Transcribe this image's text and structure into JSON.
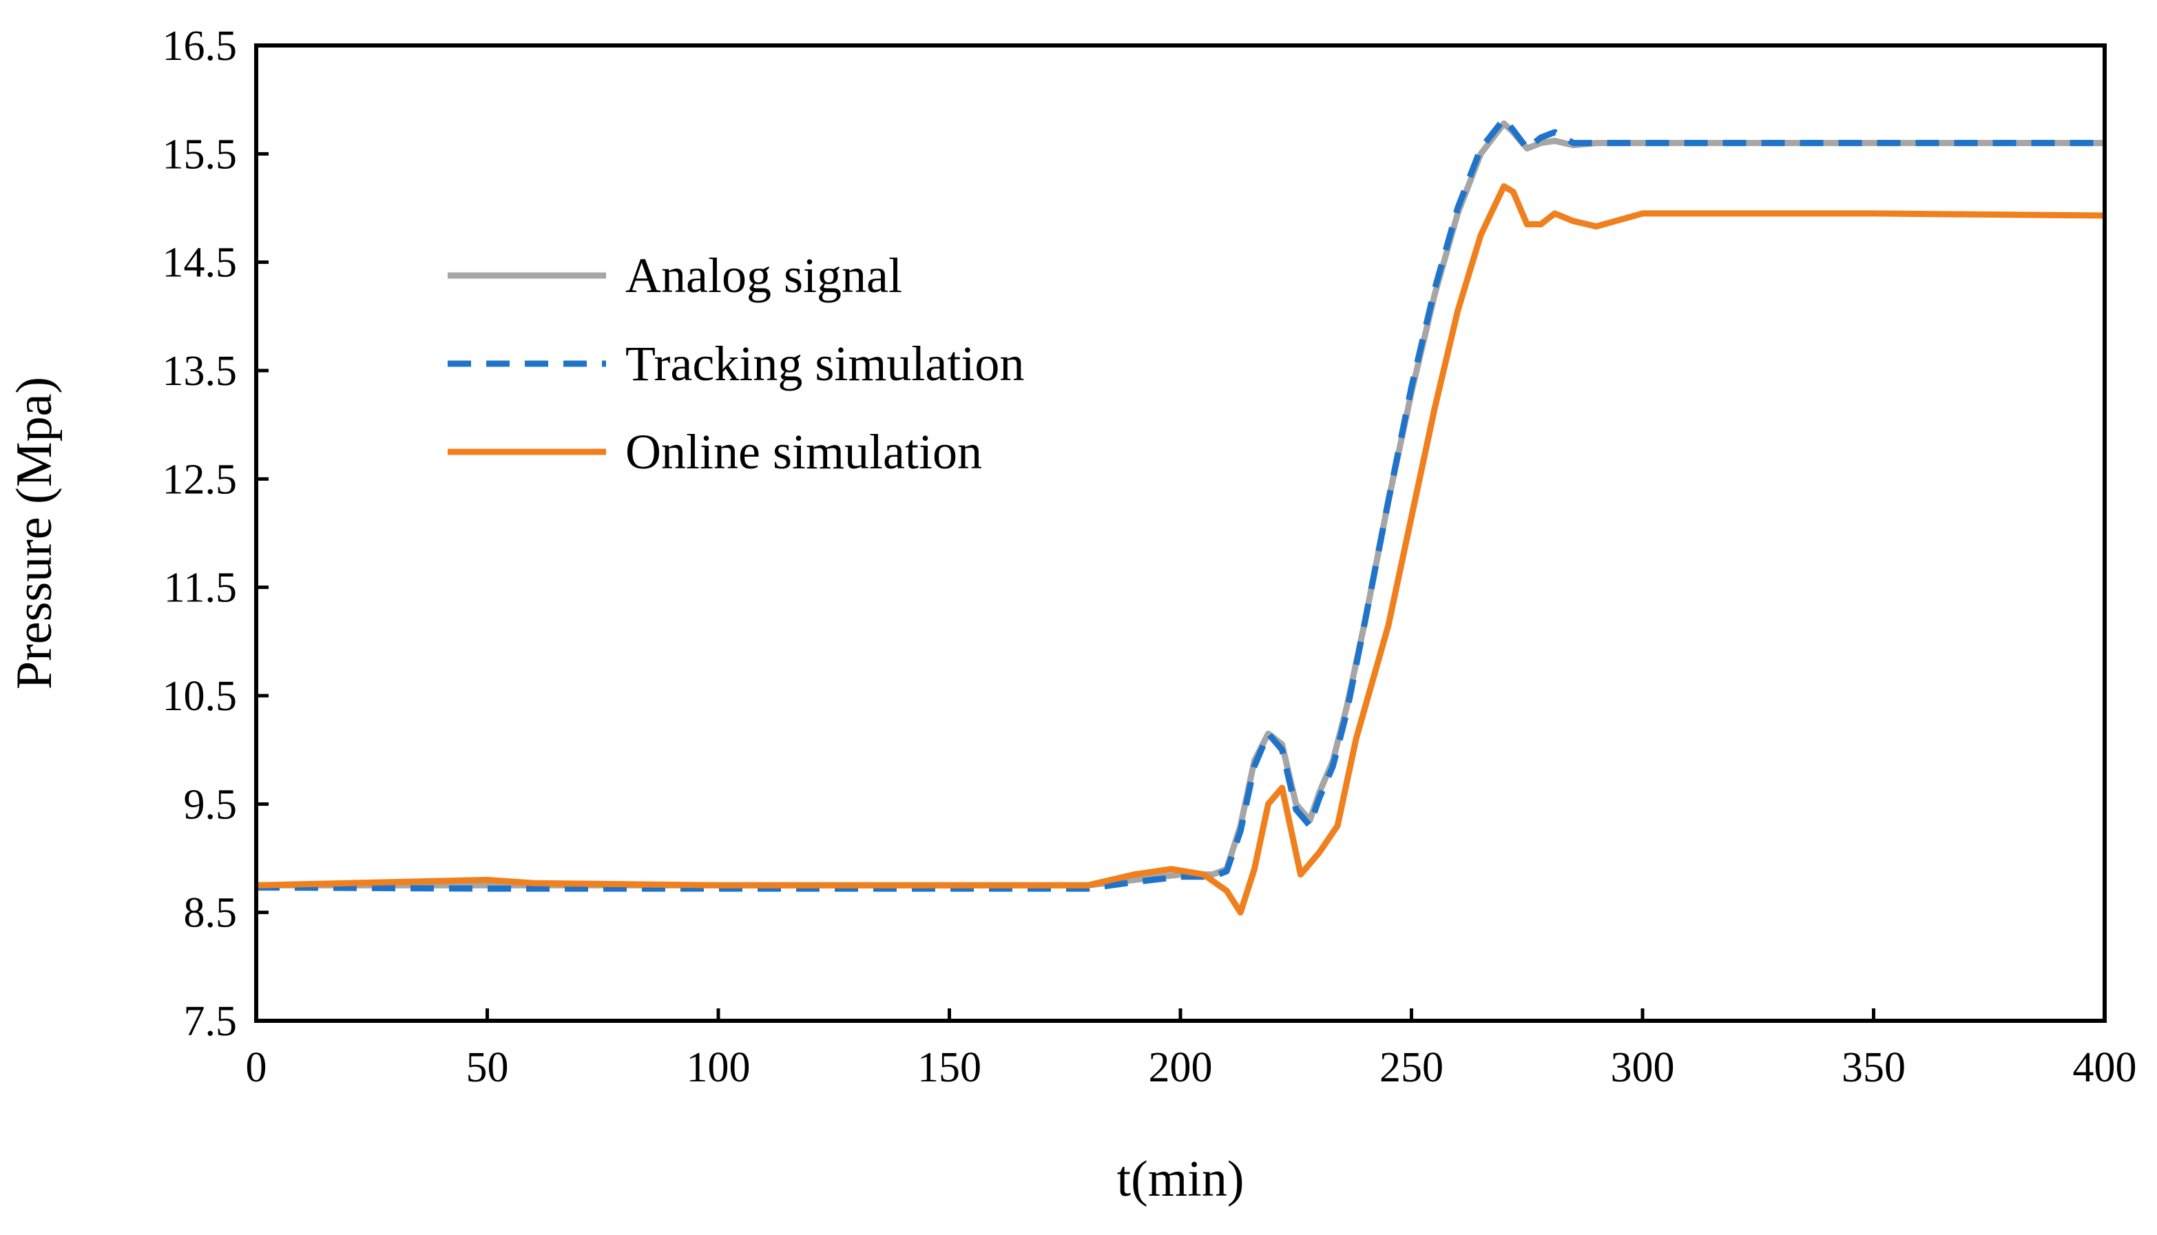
{
  "chart_data": {
    "type": "line",
    "title": "",
    "xlabel": "t(min)",
    "ylabel": "Pressure (Mpa)",
    "xlim": [
      0,
      400
    ],
    "ylim": [
      7.5,
      16.5
    ],
    "xticks": [
      0,
      50,
      100,
      150,
      200,
      250,
      300,
      350,
      400
    ],
    "yticks": [
      7.5,
      8.5,
      9.5,
      10.5,
      11.5,
      12.5,
      13.5,
      14.5,
      15.5,
      16.5
    ],
    "xtick_labels": [
      "0",
      "50",
      "100",
      "150",
      "200",
      "250",
      "300",
      "350",
      "400"
    ],
    "ytick_labels": [
      "7.5",
      "8.5",
      "9.5",
      "10.5",
      "11.5",
      "12.5",
      "13.5",
      "14.5",
      "15.5",
      "16.5"
    ],
    "grid": false,
    "legend_position": "upper-left",
    "series": [
      {
        "name": "Analog signal",
        "color": "#a6a6a6",
        "style": "solid",
        "x": [
          0,
          50,
          100,
          150,
          180,
          190,
          200,
          207,
          210,
          213,
          216,
          219,
          222,
          225,
          228,
          230,
          233,
          236,
          240,
          245,
          250,
          255,
          260,
          265,
          270,
          272,
          275,
          278,
          281,
          285,
          290,
          300,
          350,
          400
        ],
        "y": [
          8.75,
          8.75,
          8.75,
          8.75,
          8.75,
          8.8,
          8.85,
          8.85,
          8.9,
          9.3,
          9.9,
          10.15,
          10.05,
          9.5,
          9.35,
          9.6,
          9.9,
          10.4,
          11.2,
          12.3,
          13.3,
          14.2,
          14.95,
          15.5,
          15.78,
          15.7,
          15.55,
          15.6,
          15.62,
          15.58,
          15.6,
          15.6,
          15.6,
          15.6
        ]
      },
      {
        "name": "Tracking simulation",
        "color": "#1f73c9",
        "style": "dashed",
        "x": [
          0,
          50,
          100,
          150,
          180,
          190,
          200,
          207,
          210,
          213,
          216,
          219,
          222,
          225,
          228,
          230,
          233,
          236,
          240,
          245,
          250,
          255,
          260,
          265,
          270,
          272,
          275,
          278,
          281,
          285,
          290,
          300,
          350,
          400
        ],
        "y": [
          8.73,
          8.72,
          8.72,
          8.72,
          8.72,
          8.78,
          8.83,
          8.83,
          8.88,
          9.25,
          9.85,
          10.15,
          10.0,
          9.45,
          9.3,
          9.55,
          9.85,
          10.35,
          11.2,
          12.3,
          13.35,
          14.25,
          15.0,
          15.55,
          15.82,
          15.72,
          15.55,
          15.65,
          15.7,
          15.6,
          15.6,
          15.6,
          15.6,
          15.6
        ]
      },
      {
        "name": "Online simulation",
        "color": "#f07f1e",
        "style": "solid",
        "x": [
          0,
          30,
          50,
          60,
          100,
          150,
          180,
          190,
          198,
          205,
          210,
          213,
          216,
          219,
          222,
          226,
          230,
          234,
          238,
          245,
          250,
          255,
          260,
          265,
          270,
          272,
          275,
          278,
          281,
          285,
          290,
          300,
          350,
          400
        ],
        "y": [
          8.75,
          8.78,
          8.8,
          8.77,
          8.75,
          8.75,
          8.75,
          8.85,
          8.9,
          8.85,
          8.7,
          8.5,
          8.9,
          9.5,
          9.65,
          8.85,
          9.05,
          9.3,
          10.1,
          11.15,
          12.15,
          13.15,
          14.05,
          14.75,
          15.2,
          15.15,
          14.85,
          14.85,
          14.95,
          14.88,
          14.83,
          14.95,
          14.95,
          14.93
        ]
      }
    ]
  }
}
